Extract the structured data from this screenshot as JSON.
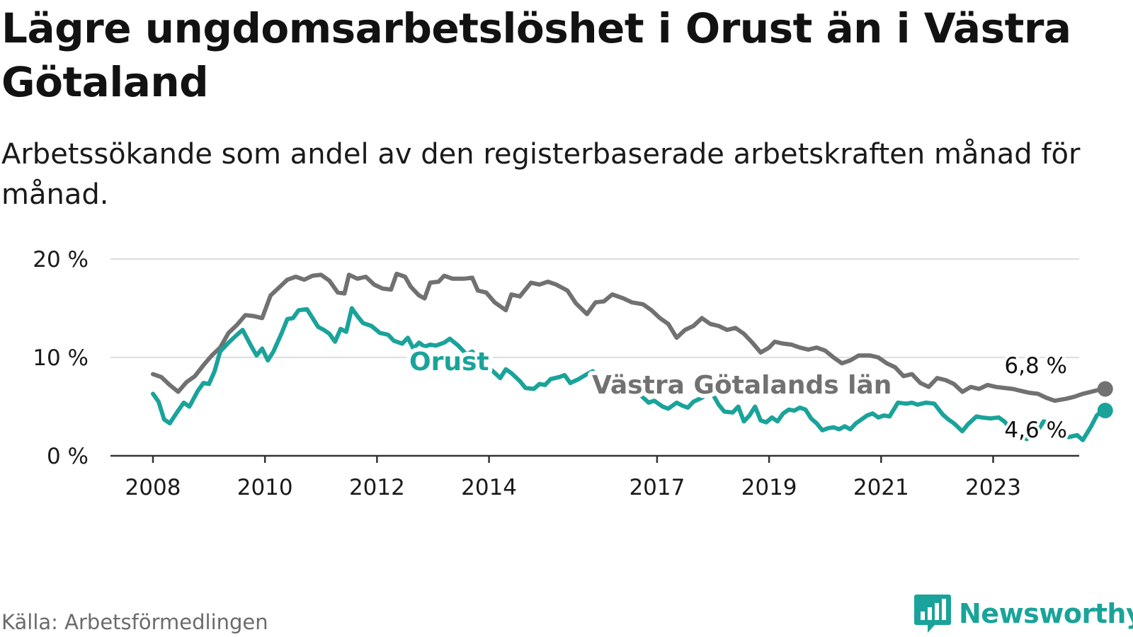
{
  "header": {
    "title": "Lägre ungdomsarbetslöshet i Orust än i Västra Götaland",
    "subtitle": "Arbetssökande som andel av den registerbaserade arbetskraften månad för månad."
  },
  "footer": {
    "source": "Källa: Arbetsförmedlingen",
    "brand": "Newsworthy"
  },
  "colors": {
    "orust": "#1aa39a",
    "vg": "#717171",
    "grid": "#dddddd",
    "axis": "#333333"
  },
  "chart_data": {
    "type": "line",
    "title": "Lägre ungdomsarbetslöshet i Orust än i Västra Götaland",
    "xlabel": "",
    "ylabel": "",
    "xlim": [
      2008.0,
      2025.25
    ],
    "ylim": [
      0,
      20
    ],
    "grid": true,
    "y_ticks": [
      {
        "value": 0,
        "label": "0 %"
      },
      {
        "value": 10,
        "label": "10 %"
      },
      {
        "value": 20,
        "label": "20 %"
      }
    ],
    "x_ticks": [
      {
        "value": 2008,
        "label": "2008"
      },
      {
        "value": 2010,
        "label": "2010"
      },
      {
        "value": 2012,
        "label": "2012"
      },
      {
        "value": 2014,
        "label": "2014"
      },
      {
        "value": 2017,
        "label": "2017"
      },
      {
        "value": 2019,
        "label": "2019"
      },
      {
        "value": 2021,
        "label": "2021"
      },
      {
        "value": 2023,
        "label": "2023"
      }
    ],
    "series": [
      {
        "name": "Västra Götalands län",
        "label": "Västra Götalands län",
        "end_label": "6,8 %",
        "color": "#717171",
        "points": [
          [
            2008.0,
            8.3
          ],
          [
            2008.15,
            8.0
          ],
          [
            2008.3,
            7.2
          ],
          [
            2008.45,
            6.5
          ],
          [
            2008.6,
            7.5
          ],
          [
            2008.75,
            8.1
          ],
          [
            2008.9,
            9.2
          ],
          [
            2009.05,
            10.2
          ],
          [
            2009.2,
            11.0
          ],
          [
            2009.35,
            12.5
          ],
          [
            2009.5,
            13.3
          ],
          [
            2009.65,
            14.3
          ],
          [
            2009.8,
            14.2
          ],
          [
            2009.95,
            14.0
          ],
          [
            2010.1,
            16.3
          ],
          [
            2010.25,
            17.1
          ],
          [
            2010.4,
            17.9
          ],
          [
            2010.55,
            18.2
          ],
          [
            2010.7,
            17.9
          ],
          [
            2010.85,
            18.3
          ],
          [
            2011.0,
            18.4
          ],
          [
            2011.15,
            17.8
          ],
          [
            2011.3,
            16.6
          ],
          [
            2011.42,
            16.5
          ],
          [
            2011.5,
            18.4
          ],
          [
            2011.65,
            18.0
          ],
          [
            2011.8,
            18.2
          ],
          [
            2011.95,
            17.4
          ],
          [
            2012.1,
            17.0
          ],
          [
            2012.25,
            16.9
          ],
          [
            2012.35,
            18.5
          ],
          [
            2012.5,
            18.2
          ],
          [
            2012.6,
            17.2
          ],
          [
            2012.75,
            16.3
          ],
          [
            2012.85,
            16.0
          ],
          [
            2012.95,
            17.6
          ],
          [
            2013.1,
            17.7
          ],
          [
            2013.2,
            18.3
          ],
          [
            2013.35,
            18.0
          ],
          [
            2013.55,
            18.0
          ],
          [
            2013.7,
            18.1
          ],
          [
            2013.8,
            16.8
          ],
          [
            2013.95,
            16.6
          ],
          [
            2014.1,
            15.6
          ],
          [
            2014.3,
            14.8
          ],
          [
            2014.4,
            16.4
          ],
          [
            2014.55,
            16.2
          ],
          [
            2014.75,
            17.6
          ],
          [
            2014.9,
            17.4
          ],
          [
            2015.05,
            17.7
          ],
          [
            2015.2,
            17.4
          ],
          [
            2015.4,
            16.8
          ],
          [
            2015.55,
            15.5
          ],
          [
            2015.75,
            14.4
          ],
          [
            2015.9,
            15.6
          ],
          [
            2016.05,
            15.7
          ],
          [
            2016.2,
            16.4
          ],
          [
            2016.4,
            16.0
          ],
          [
            2016.55,
            15.6
          ],
          [
            2016.75,
            15.4
          ],
          [
            2016.9,
            14.8
          ],
          [
            2017.05,
            14.0
          ],
          [
            2017.2,
            13.4
          ],
          [
            2017.35,
            12.0
          ],
          [
            2017.5,
            12.8
          ],
          [
            2017.65,
            13.2
          ],
          [
            2017.8,
            14.0
          ],
          [
            2017.95,
            13.4
          ],
          [
            2018.1,
            13.2
          ],
          [
            2018.25,
            12.8
          ],
          [
            2018.4,
            13.0
          ],
          [
            2018.55,
            12.4
          ],
          [
            2018.7,
            11.5
          ],
          [
            2018.85,
            10.5
          ],
          [
            2019.0,
            11.0
          ],
          [
            2019.1,
            11.6
          ],
          [
            2019.25,
            11.4
          ],
          [
            2019.4,
            11.3
          ],
          [
            2019.55,
            11.0
          ],
          [
            2019.7,
            10.8
          ],
          [
            2019.85,
            11.0
          ],
          [
            2020.0,
            10.7
          ],
          [
            2020.15,
            10.0
          ],
          [
            2020.3,
            9.4
          ],
          [
            2020.45,
            9.7
          ],
          [
            2020.6,
            10.2
          ],
          [
            2020.8,
            10.2
          ],
          [
            2020.95,
            10.0
          ],
          [
            2021.1,
            9.4
          ],
          [
            2021.25,
            9.0
          ],
          [
            2021.4,
            8.1
          ],
          [
            2021.55,
            8.3
          ],
          [
            2021.7,
            7.4
          ],
          [
            2021.85,
            7.0
          ],
          [
            2022.0,
            7.9
          ]
        ]
      },
      {
        "name": "Orust",
        "label": "Orust",
        "end_label": "4,6 %",
        "color": "#1aa39a",
        "points": [
          [
            2008.0,
            6.3
          ],
          [
            2008.1,
            5.5
          ],
          [
            2008.2,
            3.7
          ],
          [
            2008.3,
            3.3
          ],
          [
            2008.45,
            4.6
          ],
          [
            2008.55,
            5.4
          ],
          [
            2008.65,
            5.0
          ],
          [
            2008.8,
            6.6
          ],
          [
            2008.9,
            7.4
          ],
          [
            2009.0,
            7.3
          ],
          [
            2009.1,
            8.6
          ],
          [
            2009.2,
            10.6
          ],
          [
            2009.35,
            11.5
          ],
          [
            2009.5,
            12.3
          ],
          [
            2009.6,
            12.8
          ],
          [
            2009.75,
            11.2
          ],
          [
            2009.85,
            10.2
          ],
          [
            2009.95,
            10.9
          ],
          [
            2010.05,
            9.7
          ],
          [
            2010.15,
            10.6
          ],
          [
            2010.3,
            12.5
          ],
          [
            2010.4,
            13.9
          ],
          [
            2010.5,
            14.0
          ],
          [
            2010.6,
            14.8
          ],
          [
            2010.75,
            14.9
          ],
          [
            2010.85,
            14.0
          ],
          [
            2010.95,
            13.1
          ],
          [
            2011.05,
            12.8
          ],
          [
            2011.15,
            12.4
          ],
          [
            2011.25,
            11.6
          ],
          [
            2011.35,
            12.9
          ],
          [
            2011.45,
            12.6
          ],
          [
            2011.55,
            15.0
          ],
          [
            2011.65,
            14.2
          ],
          [
            2011.75,
            13.5
          ],
          [
            2011.9,
            13.2
          ],
          [
            2012.05,
            12.5
          ],
          [
            2012.2,
            12.3
          ],
          [
            2012.3,
            11.7
          ],
          [
            2012.45,
            11.4
          ],
          [
            2012.55,
            12.0
          ],
          [
            2012.65,
            10.9
          ],
          [
            2012.75,
            11.5
          ],
          [
            2012.85,
            11.1
          ],
          [
            2012.95,
            11.3
          ],
          [
            2013.05,
            11.2
          ],
          [
            2013.2,
            11.5
          ],
          [
            2013.3,
            11.9
          ],
          [
            2013.45,
            11.2
          ],
          [
            2013.6,
            10.3
          ],
          [
            2013.7,
            10.6
          ],
          [
            2013.85,
            9.5
          ],
          [
            2013.95,
            8.8
          ],
          [
            2014.05,
            8.7
          ],
          [
            2014.2,
            7.9
          ],
          [
            2014.3,
            8.8
          ],
          [
            2014.4,
            8.4
          ],
          [
            2014.55,
            7.6
          ],
          [
            2014.65,
            6.9
          ],
          [
            2014.8,
            6.8
          ],
          [
            2014.9,
            7.3
          ],
          [
            2015.0,
            7.2
          ],
          [
            2015.1,
            7.8
          ],
          [
            2015.25,
            8.0
          ],
          [
            2015.35,
            8.2
          ],
          [
            2015.45,
            7.4
          ],
          [
            2015.6,
            7.8
          ],
          [
            2015.75,
            8.3
          ],
          [
            2015.85,
            8.6
          ],
          [
            2015.95,
            8.0
          ],
          [
            2016.05,
            6.8
          ],
          [
            2016.15,
            6.8
          ],
          [
            2016.25,
            6.3
          ],
          [
            2016.35,
            6.1
          ],
          [
            2016.45,
            6.9
          ],
          [
            2016.55,
            7.5
          ],
          [
            2016.7,
            6.2
          ],
          [
            2016.85,
            5.4
          ],
          [
            2016.95,
            5.6
          ],
          [
            2017.1,
            5.0
          ],
          [
            2017.2,
            4.8
          ],
          [
            2017.35,
            5.4
          ],
          [
            2017.45,
            5.1
          ],
          [
            2017.55,
            4.9
          ],
          [
            2017.65,
            5.5
          ],
          [
            2017.8,
            5.9
          ],
          [
            2017.9,
            6.3
          ],
          [
            2018.0,
            6.2
          ],
          [
            2018.1,
            5.2
          ],
          [
            2018.2,
            4.5
          ],
          [
            2018.35,
            4.4
          ],
          [
            2018.45,
            5.0
          ],
          [
            2018.55,
            3.5
          ],
          [
            2018.65,
            4.1
          ],
          [
            2018.75,
            5.0
          ],
          [
            2018.85,
            3.6
          ],
          [
            2018.95,
            3.4
          ],
          [
            2019.05,
            3.9
          ],
          [
            2019.15,
            3.5
          ],
          [
            2019.25,
            4.3
          ],
          [
            2019.35,
            4.7
          ],
          [
            2019.45,
            4.6
          ],
          [
            2019.55,
            4.9
          ],
          [
            2019.65,
            4.7
          ],
          [
            2019.75,
            3.8
          ],
          [
            2019.85,
            3.3
          ],
          [
            2019.95,
            2.6
          ],
          [
            2020.05,
            2.8
          ],
          [
            2020.15,
            2.9
          ],
          [
            2020.25,
            2.7
          ],
          [
            2020.35,
            3.0
          ],
          [
            2020.45,
            2.7
          ],
          [
            2020.55,
            3.3
          ],
          [
            2020.65,
            3.7
          ],
          [
            2020.75,
            4.1
          ],
          [
            2020.85,
            4.3
          ],
          [
            2020.95,
            3.9
          ],
          [
            2021.05,
            4.1
          ],
          [
            2021.15,
            4.0
          ],
          [
            2021.3,
            5.4
          ],
          [
            2021.45,
            5.3
          ],
          [
            2021.55,
            5.4
          ],
          [
            2021.65,
            5.2
          ],
          [
            2021.8,
            5.4
          ],
          [
            2021.95,
            5.3
          ],
          [
            2022.1,
            4.2
          ],
          [
            2022.2,
            3.7
          ],
          [
            2022.3,
            3.3
          ],
          [
            2022.45,
            2.5
          ],
          [
            2022.55,
            3.2
          ],
          [
            2022.7,
            4.0
          ],
          [
            2022.8,
            3.9
          ],
          [
            2022.95,
            3.8
          ],
          [
            2023.1,
            3.9
          ],
          [
            2023.2,
            3.5
          ],
          [
            2023.35,
            2.5
          ],
          [
            2023.45,
            2.3
          ],
          [
            2023.6,
            1.7
          ],
          [
            2023.7,
            2.8
          ],
          [
            2023.8,
            2.6
          ],
          [
            2023.9,
            3.5
          ],
          [
            2024.0,
            3.3
          ],
          [
            2024.1,
            3.0
          ],
          [
            2024.2,
            2.1
          ],
          [
            2024.35,
            1.9
          ],
          [
            2024.5,
            2.1
          ],
          [
            2024.6,
            1.6
          ],
          [
            2024.75,
            3.0
          ],
          [
            2024.85,
            4.1
          ],
          [
            2024.95,
            4.6
          ]
        ]
      },
      {
        "name": "Västra Götalands län (fortsättning)",
        "label": "",
        "color": "#717171",
        "points": [
          [
            2022.0,
            7.9
          ],
          [
            2022.15,
            7.7
          ],
          [
            2022.3,
            7.3
          ],
          [
            2022.45,
            6.5
          ],
          [
            2022.6,
            7.0
          ],
          [
            2022.75,
            6.8
          ],
          [
            2022.9,
            7.2
          ],
          [
            2023.05,
            7.0
          ],
          [
            2023.2,
            6.9
          ],
          [
            2023.35,
            6.8
          ],
          [
            2023.5,
            6.6
          ],
          [
            2023.65,
            6.4
          ],
          [
            2023.8,
            6.3
          ],
          [
            2023.95,
            5.9
          ],
          [
            2024.1,
            5.6
          ],
          [
            2024.3,
            5.8
          ],
          [
            2024.45,
            6.0
          ],
          [
            2024.6,
            6.3
          ],
          [
            2024.75,
            6.5
          ],
          [
            2024.95,
            6.8
          ]
        ]
      }
    ]
  }
}
